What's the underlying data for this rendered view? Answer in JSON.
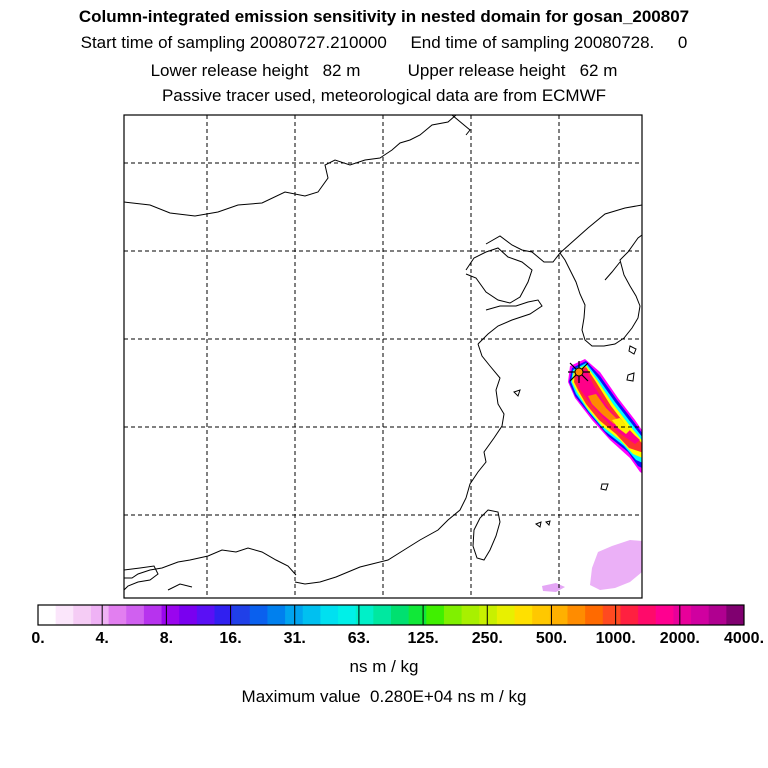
{
  "header": {
    "title": "Column-integrated emission sensitivity in nested domain for gosan_200807",
    "sampling": "Start time of sampling 20080727.210000     End time of sampling 20080728.     0",
    "release": "Lower release height   82 m          Upper release height   62 m",
    "tracer": "Passive tracer used, meteorological data are from ECMWF"
  },
  "colorbar": {
    "ticks": [
      "0.",
      "4.",
      "8.",
      "16.",
      "31.",
      "63.",
      "125.",
      "250.",
      "500.",
      "1000.",
      "2000.",
      "4000."
    ],
    "colors": [
      "#ffffff",
      "#fbe6fb",
      "#f5ccf5",
      "#efb2f5",
      "#e27ff0",
      "#d060f0",
      "#b733ee",
      "#9a05ee",
      "#7a00f0",
      "#5a10f5",
      "#3020f0",
      "#2040e8",
      "#0a60ee",
      "#0080ee",
      "#00a4ef",
      "#00c0f0",
      "#00e0f0",
      "#00f0e8",
      "#00f0c8",
      "#00e8a0",
      "#00e070",
      "#10e838",
      "#40f000",
      "#80f000",
      "#a8f000",
      "#c8f000",
      "#e8f000",
      "#ffe000",
      "#ffc800",
      "#ffb000",
      "#ff8c00",
      "#ff6a00",
      "#ff4a20",
      "#ff2040",
      "#ff0a6a",
      "#ff0090",
      "#e8009a",
      "#d000a0",
      "#b00090",
      "#800070"
    ],
    "units": "ns m / kg"
  },
  "max_value": "Maximum value  0.280E+04 ns m / kg",
  "map": {
    "receptor": "Gosan",
    "plume_colors": {
      "outer": "#ff00ff",
      "blue": "#1010f8",
      "cyan": "#00ffff",
      "yellow": "#ffff00",
      "orange": "#ff8800",
      "red": "#ff3030",
      "core": "#ff0088",
      "faint": "#ebb0f7"
    },
    "marker_color": "#ff8800"
  }
}
